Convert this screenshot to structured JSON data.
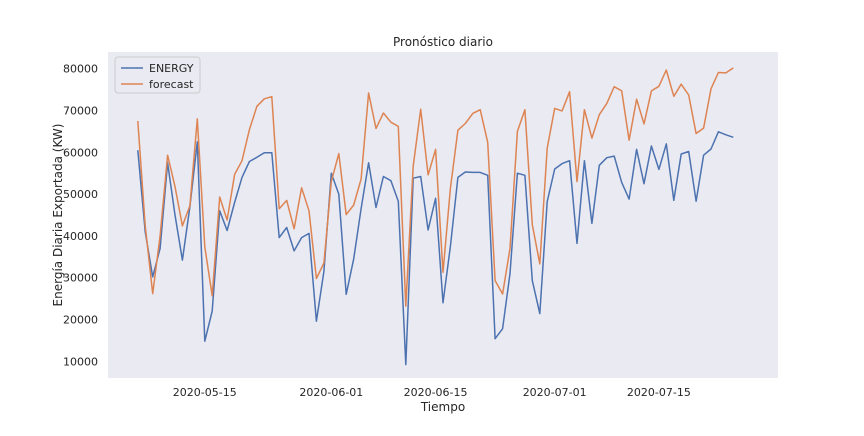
{
  "chart_data": {
    "type": "line",
    "title": "Pronóstico diario",
    "xlabel": "Tiempo",
    "ylabel": "Energía Diaria Exportada (KW)",
    "x_start": "2020-05-06",
    "x_ticks": [
      "2020-05-15",
      "2020-06-01",
      "2020-06-15",
      "2020-07-01",
      "2020-07-15"
    ],
    "y_ticks": [
      10000,
      20000,
      30000,
      40000,
      50000,
      60000,
      70000,
      80000
    ],
    "xlim": [
      "2020-05-02",
      "2020-07-31"
    ],
    "ylim": [
      6000,
      84000
    ],
    "grid": false,
    "legend_position": "top-left",
    "background_color": "#eaeaf2",
    "series": [
      {
        "name": "ENERGY",
        "color": "#4c72b0",
        "values": [
          60500,
          41000,
          30200,
          37000,
          57500,
          45000,
          34200,
          47000,
          62500,
          14800,
          22000,
          46000,
          41300,
          48000,
          54000,
          57800,
          58800,
          59900,
          59900,
          39600,
          42000,
          36400,
          39600,
          40600,
          19600,
          31500,
          55000,
          50000,
          26000,
          34500,
          46500,
          57500,
          46800,
          54200,
          53200,
          48300,
          9200,
          53800,
          54200,
          41400,
          49000,
          24000,
          37500,
          54000,
          55300,
          55200,
          55200,
          54500,
          15400,
          17800,
          31000,
          55000,
          54500,
          29300,
          21400,
          48200,
          56000,
          57300,
          58000,
          38200,
          58000,
          43000,
          56900,
          58700,
          59100,
          52800,
          48800,
          60700,
          52500,
          61500,
          55900,
          62000,
          48500,
          59600,
          60200,
          48300,
          59300,
          60800,
          64900,
          64200,
          63600
        ]
      },
      {
        "name": "forecast",
        "color": "#dd8452",
        "values": [
          67500,
          42500,
          26200,
          40000,
          59300,
          51800,
          42400,
          47200,
          68000,
          37400,
          25700,
          49300,
          43800,
          54700,
          58000,
          65400,
          71000,
          72800,
          73300,
          46500,
          48500,
          41700,
          51500,
          46000,
          29800,
          33500,
          53000,
          59700,
          45100,
          47400,
          53600,
          74200,
          65700,
          69400,
          67200,
          66200,
          23200,
          56700,
          70300,
          54600,
          60700,
          31300,
          51400,
          65300,
          66900,
          69300,
          70200,
          62400,
          29300,
          26100,
          37000,
          65000,
          70200,
          42700,
          33300,
          61000,
          70500,
          69900,
          74500,
          53000,
          70200,
          63400,
          69000,
          71700,
          75700,
          74700,
          62900,
          72700,
          66800,
          74700,
          75800,
          79700,
          73400,
          76300,
          73700,
          64500,
          65800,
          75200,
          79100,
          79000,
          80200
        ]
      }
    ]
  }
}
